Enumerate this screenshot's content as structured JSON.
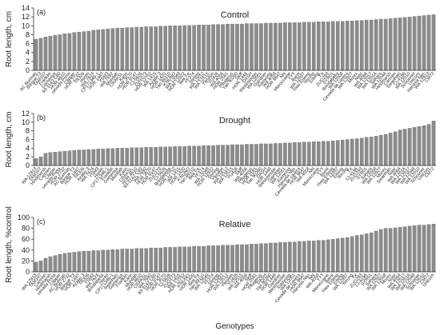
{
  "chart_data": [
    {
      "type": "bar",
      "panel_label": "(a)",
      "title": "Control",
      "ylabel": "Root length, cm",
      "color": "#8c8c8c",
      "ylim": [
        0,
        14
      ],
      "yticks": [
        0,
        2,
        4,
        6,
        8,
        10,
        12,
        14
      ],
      "categories": [
        "AC Burman",
        "Bilrque T3",
        "TAM107",
        "Franklin",
        "Gamenya",
        "93-3142 C60",
        "HOR 4610",
        "cevada Preta",
        "Clipper",
        "HOR 2732",
        "TR326",
        "Horen",
        "WA 7624",
        "CP171346-1",
        "HOR 1447",
        "YSM3",
        "WA 7692",
        "Mundah",
        "CRAKSL",
        "Karin",
        "HOR 3570",
        "HOR 8147",
        "CI-5626",
        "ZUG273",
        "HOR 12752",
        "WA 1415",
        "Azabo 3",
        "HOR 1420",
        "Yan 89110",
        "K'NUNO",
        "WA 12049",
        "HOR 12922",
        "Bee Fe",
        "YF374",
        "Stirling",
        "WA 12512",
        "WA 12515",
        "Ylpsilon",
        "YU426",
        "WA 4056",
        "HOR 2581",
        "Pflugerus",
        "Yan 90260",
        "Skiff",
        "HOR 1448",
        "DASH",
        "Westminster",
        "WA 12051",
        "Gairdner",
        "Xiaoyong",
        "WA 4058",
        "HOR 9647",
        "NN",
        "Moroccaine",
        "YYT",
        "Barnt",
        "WA 12937",
        "Yiwu Erleng",
        "Yerong",
        "Erleng",
        "TX",
        "ZUG293",
        "SYR01",
        "Brindabella",
        "WA 12008",
        "Cevada de cavera",
        "WA 12927",
        "Morex",
        "Nasr",
        "WA 4064",
        "WA 12017",
        "WA 12016",
        "Sahara",
        "WA 12048",
        "Hindmarsh",
        "Carmen",
        "Swanhals",
        "CI-4196",
        "WA 12010",
        "Schooner",
        "Unicorn",
        "Harunia Nijo",
        "WA 12913",
        "CM72"
      ],
      "values": [
        7.0,
        7.2,
        7.5,
        7.7,
        7.9,
        8.0,
        8.2,
        8.3,
        8.5,
        8.6,
        8.7,
        8.8,
        9.0,
        9.1,
        9.2,
        9.3,
        9.4,
        9.5,
        9.5,
        9.6,
        9.6,
        9.7,
        9.7,
        9.8,
        9.8,
        9.8,
        9.9,
        9.9,
        10.0,
        10.0,
        10.0,
        10.1,
        10.1,
        10.1,
        10.2,
        10.2,
        10.2,
        10.3,
        10.3,
        10.3,
        10.4,
        10.4,
        10.4,
        10.4,
        10.5,
        10.5,
        10.5,
        10.5,
        10.6,
        10.6,
        10.6,
        10.6,
        10.7,
        10.7,
        10.7,
        10.7,
        10.8,
        10.8,
        10.8,
        10.9,
        10.9,
        10.9,
        11.0,
        11.0,
        11.0,
        11.1,
        11.1,
        11.2,
        11.2,
        11.3,
        11.3,
        11.4,
        11.5,
        11.5,
        11.6,
        11.7,
        11.8,
        11.9,
        12.0,
        12.1,
        12.2,
        12.3,
        12.4,
        12.5
      ]
    },
    {
      "type": "bar",
      "panel_label": "(b)",
      "title": "Drought",
      "ylabel": "Root length, cm",
      "color": "#8c8c8c",
      "ylim": [
        0,
        12
      ],
      "yticks": [
        0,
        2,
        4,
        6,
        8,
        10,
        12
      ],
      "categories": [
        "WA 12913",
        "TAM107",
        "Hindmarsh",
        "Carmen",
        "Clipper",
        "cevada Preta",
        "HOR 2732",
        "AC Burman",
        "Bilrque T3",
        "HOR 1447",
        "TR326",
        "Azabo 3",
        "WA 7624",
        "YSM3",
        "Horen",
        "CP171346-1",
        "Franklin",
        "Gamenya",
        "Mundah",
        "Karin",
        "CRAKSL",
        "HOR 4610",
        "93-3142 C60",
        "WA 7692",
        "HOR 3570",
        "HOR 8147",
        "ZUG273",
        "CI-5626",
        "Brindabella",
        "HOR 12752",
        "WA 1415",
        "HOR 1420",
        "K'NUNO",
        "Yan 89110",
        "Bee Fe",
        "YF374",
        "WA 12049",
        "HOR 12922",
        "Stirling",
        "Ylpsilon",
        "WA 12512",
        "WA 12515",
        "YU426",
        "Skiff",
        "WA 4056",
        "Pflugerus",
        "HOR 2581",
        "Yan 90260",
        "DASH",
        "HOR 1448",
        "Westminster",
        "Gairdner",
        "WA 12051",
        "Xiaoyong",
        "Harunia Nijo",
        "Cevada de cavera",
        "HOR 9647",
        "WA 4058",
        "NN",
        "Moroccaine",
        "YYT",
        "Barnt",
        "Yiwu Erleng",
        "WA 12937",
        "Erleng",
        "Yerong",
        "TX",
        "CI-4196",
        "ZUG293",
        "SYR01",
        "Sahara",
        "WA 12008",
        "WA 12927",
        "Morex",
        "Swanhals",
        "Nasr",
        "WA 4064",
        "WA 12016",
        "WA 12017",
        "WA 12048",
        "WA 12010",
        "Schooner",
        "Unicorn",
        "CM72"
      ],
      "values": [
        1.6,
        2.0,
        2.8,
        3.0,
        3.1,
        3.2,
        3.3,
        3.4,
        3.5,
        3.6,
        3.6,
        3.7,
        3.7,
        3.8,
        3.8,
        3.9,
        3.9,
        4.0,
        4.0,
        4.0,
        4.1,
        4.1,
        4.1,
        4.2,
        4.2,
        4.2,
        4.3,
        4.3,
        4.3,
        4.4,
        4.4,
        4.4,
        4.5,
        4.5,
        4.5,
        4.6,
        4.6,
        4.6,
        4.7,
        4.7,
        4.7,
        4.8,
        4.8,
        4.8,
        4.9,
        4.9,
        4.9,
        5.0,
        5.0,
        5.0,
        5.1,
        5.1,
        5.2,
        5.2,
        5.3,
        5.3,
        5.4,
        5.4,
        5.5,
        5.5,
        5.6,
        5.6,
        5.7,
        5.8,
        5.9,
        6.0,
        6.1,
        6.2,
        6.3,
        6.5,
        6.6,
        6.8,
        7.0,
        7.2,
        7.5,
        7.8,
        8.2,
        8.4,
        8.6,
        8.8,
        9.0,
        9.2,
        9.5,
        10.3
      ]
    },
    {
      "type": "bar",
      "panel_label": "(c)",
      "title": "Relative",
      "ylabel": "Root length, %control",
      "xlabel": "Genotypes",
      "color": "#8c8c8c",
      "ylim": [
        0,
        100
      ],
      "yticks": [
        0,
        20,
        40,
        60,
        80,
        100
      ],
      "categories": [
        "WA 12913",
        "TAM107",
        "Carmen",
        "Hindmarsh",
        "cevada Preta",
        "Clipper",
        "AC Burman",
        "HOR 2732",
        "Bilrque T3",
        "HOR 1447",
        "Azabo 3",
        "TR326",
        "YSM3",
        "WA 7624",
        "Brindabella",
        "Horen",
        "CP171346-1",
        "Swanhals",
        "Gamenya",
        "Franklin",
        "Karin",
        "Mundah",
        "HOR 4610",
        "CRAKSL",
        "WA 7692",
        "93-3142 C60",
        "HOR 8147",
        "HOR 3570",
        "CI-5626",
        "ZUG273",
        "WA 1415",
        "HOR 12752",
        "K'NUNO",
        "HOR 1420",
        "Bee Fe",
        "Yan 89110",
        "WA 12049",
        "YF374",
        "Stirling",
        "HOR 12922",
        "WA 12512",
        "Ylpsilon",
        "YU426",
        "WA 12515",
        "WA 4056",
        "Skiff",
        "HOR 2581",
        "Pflugerus",
        "DASH",
        "Yan 90260",
        "HOR 1448",
        "Gairdner",
        "Westminster",
        "Xiaoyong",
        "WA 12051",
        "Cevada de cavera",
        "HOR 9647",
        "Harunia Nijo",
        "NN",
        "WA 4058",
        "YYT",
        "Moroccaine",
        "Barnt",
        "Yiwu Erleng",
        "Erleng",
        "WA 12937",
        "Yerong",
        "TX",
        "ZUG293",
        "CI-4196",
        "SYR01",
        "Sahara",
        "WA 12927",
        "WA 12008",
        "Morex",
        "Nasr",
        "WA 4064",
        "WA 12017",
        "WA 12016",
        "WA 12048",
        "Schooner",
        "WA 12010",
        "CM72",
        "Unicorn"
      ],
      "values": [
        18,
        20,
        25,
        28,
        30,
        32,
        34,
        35,
        36,
        37,
        38,
        38,
        39,
        39,
        40,
        40,
        41,
        41,
        42,
        42,
        42,
        43,
        43,
        43,
        44,
        44,
        44,
        45,
        45,
        45,
        46,
        46,
        46,
        47,
        47,
        47,
        48,
        48,
        48,
        49,
        49,
        49,
        50,
        50,
        50,
        51,
        51,
        52,
        52,
        53,
        53,
        54,
        54,
        55,
        55,
        56,
        56,
        57,
        57,
        58,
        58,
        59,
        60,
        61,
        62,
        63,
        65,
        67,
        68,
        70,
        72,
        75,
        78,
        80,
        80,
        81,
        82,
        83,
        84,
        85,
        86,
        86,
        87,
        88
      ]
    }
  ]
}
